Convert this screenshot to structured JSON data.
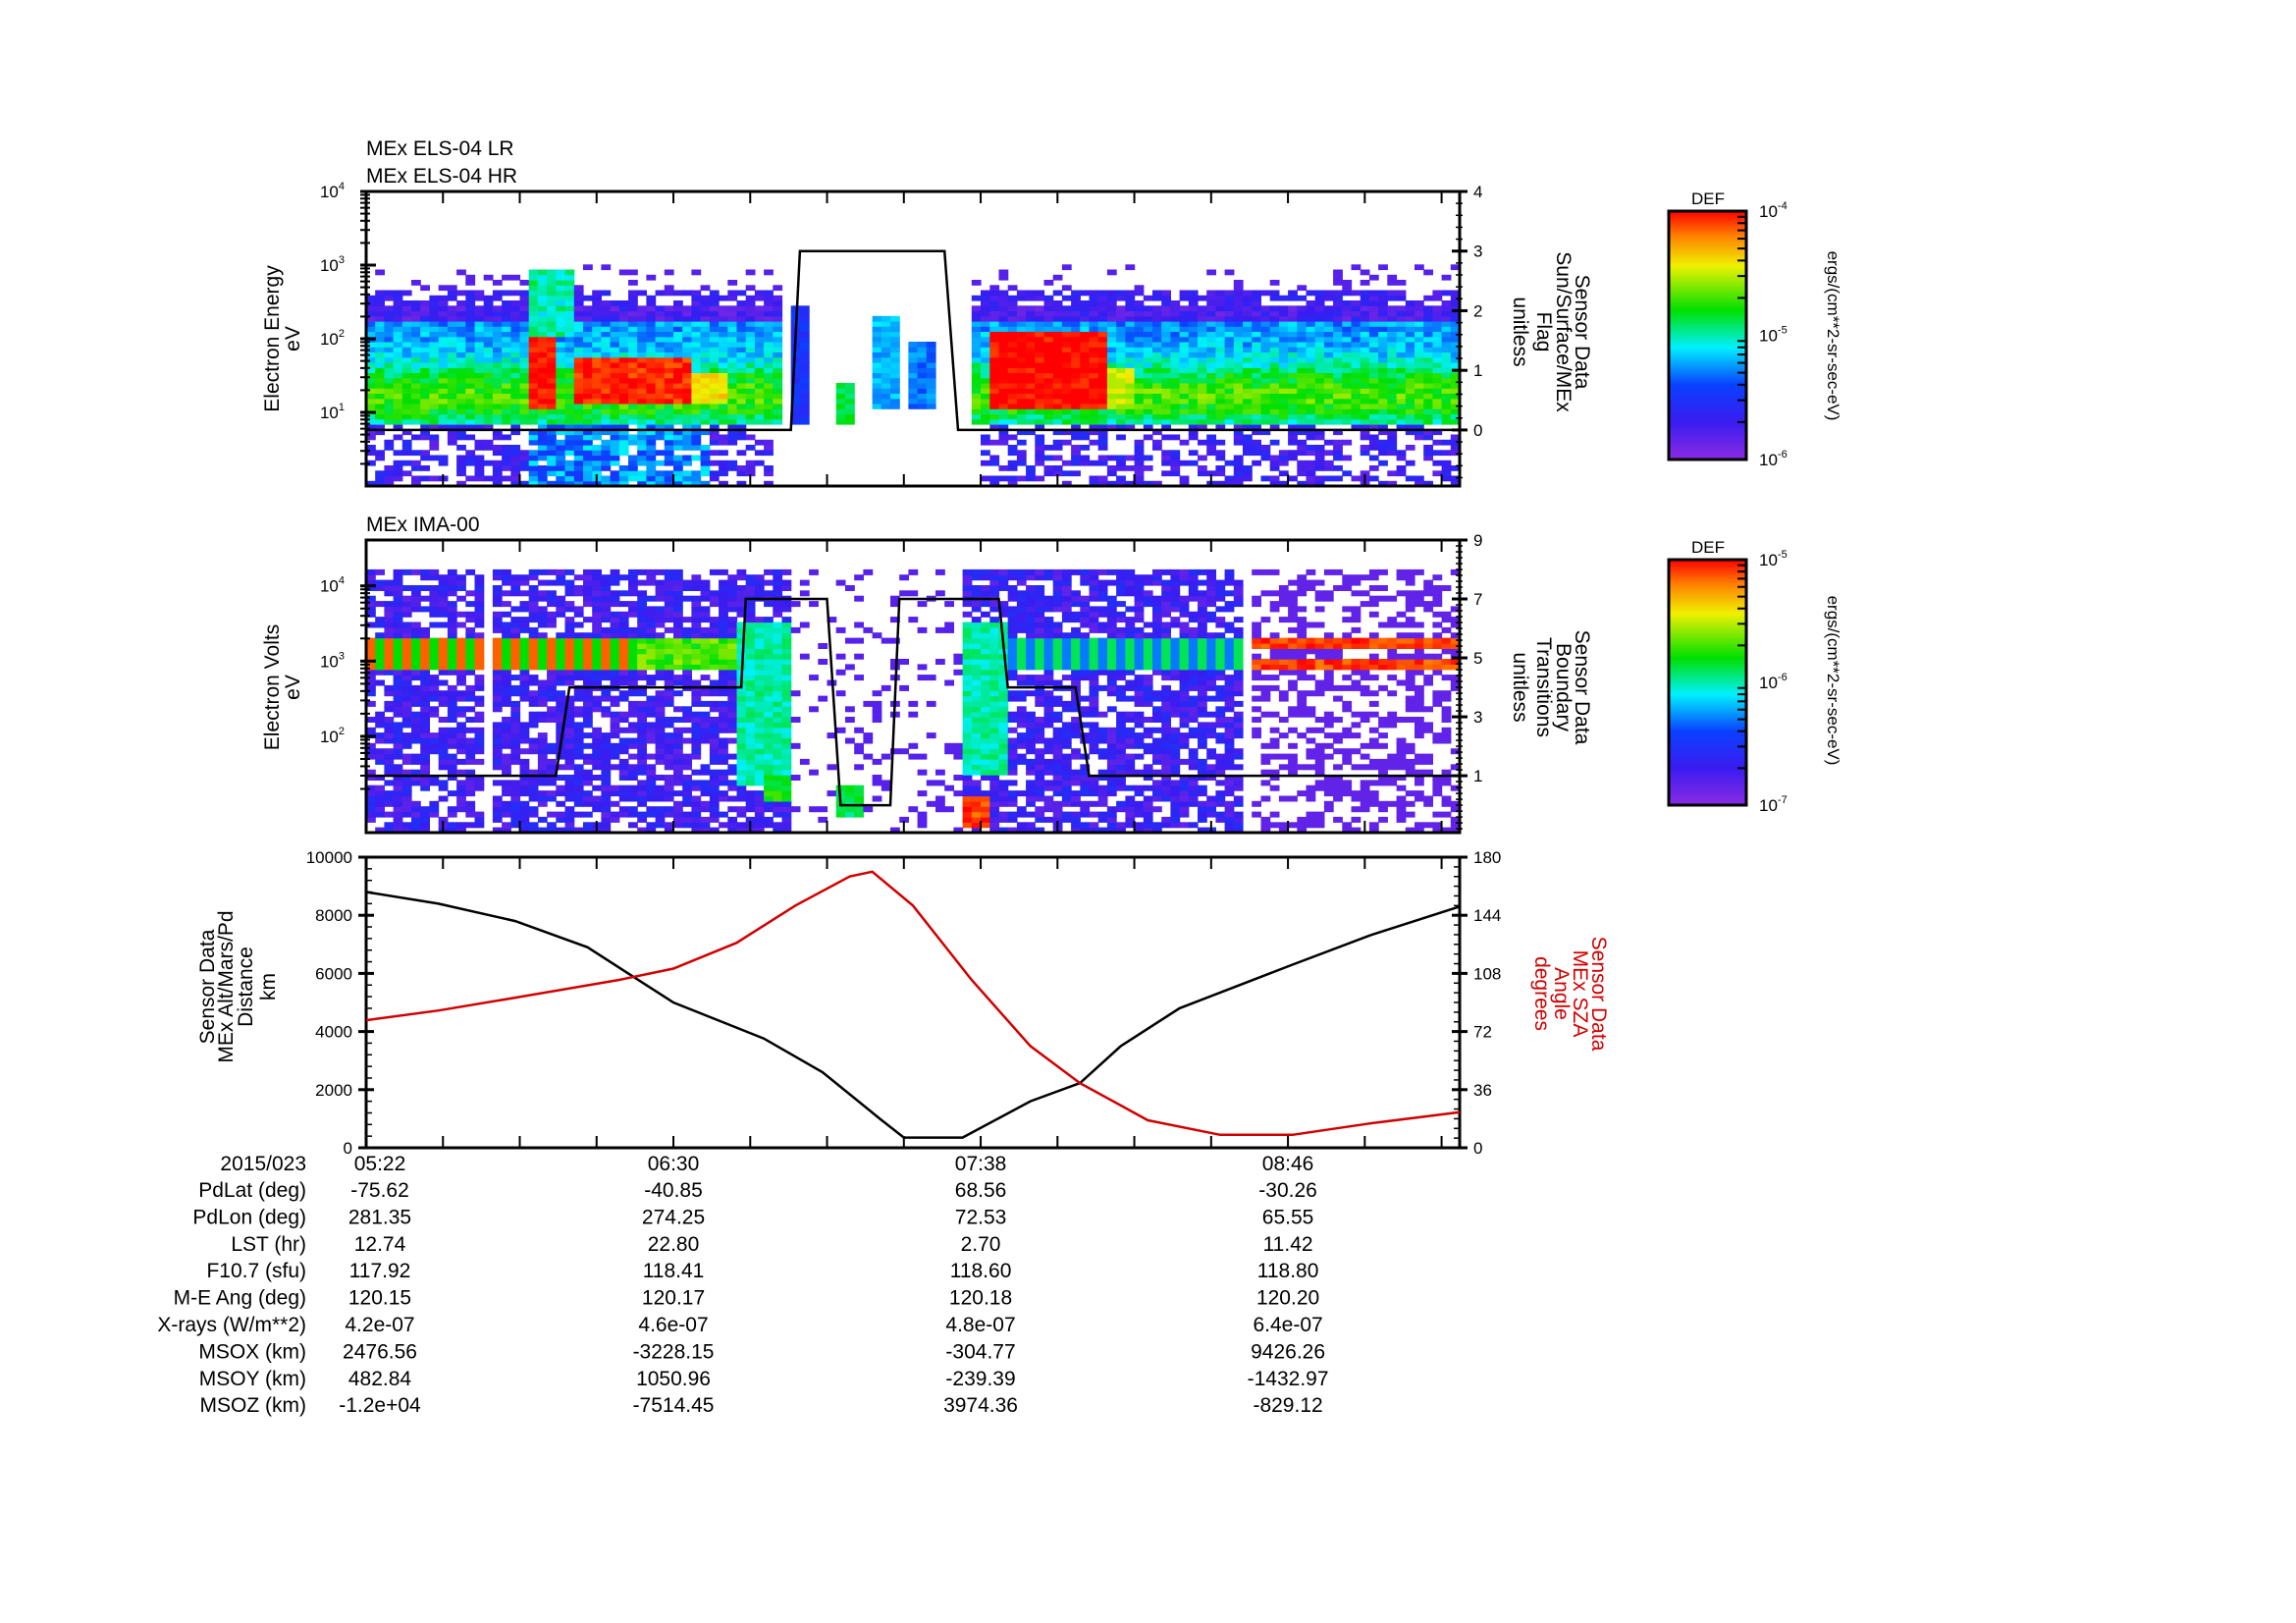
{
  "time_axis": {
    "start": "05:22",
    "span_minutes": 242,
    "major_labels": [
      "05:22",
      "06:30",
      "07:38",
      "08:46"
    ],
    "major_minutes": [
      0,
      68,
      136,
      204
    ],
    "minor_step_minutes": 17
  },
  "chart_data": [
    {
      "type": "heatmap",
      "title_lines": [
        "MEx ELS-04 LR",
        "MEx ELS-04 HR"
      ],
      "ylabel": [
        "Electron Energy",
        "eV"
      ],
      "yscale": "log",
      "ylim_log10": [
        0,
        4
      ],
      "ytick_exponents": [
        1,
        2,
        3,
        4
      ],
      "y2label": [
        "Sensor Data",
        "Sun/Surface/MEx",
        "Flag",
        "unitless"
      ],
      "y2lim": [
        -0.94,
        4
      ],
      "y2ticks": [
        "0",
        "1",
        "2",
        "3",
        "4"
      ],
      "y2_series": {
        "name": "Sun/Surface/MEx Flag",
        "t": [
          0,
          94,
          96,
          128,
          131,
          242
        ],
        "v": [
          0,
          0,
          3,
          3,
          0,
          0
        ]
      },
      "colorbar": {
        "title": "DEF",
        "log10_range": [
          -6,
          -4
        ],
        "tick_exponents": [
          "-6",
          "-5",
          "-4"
        ],
        "units": "ergs/(cm**2-sr-sec-eV)"
      },
      "features": [
        {
          "t": [
            36,
            42
          ],
          "eV": [
            11,
            100
          ],
          "log10_def": -4.0
        },
        {
          "t": [
            46,
            72
          ],
          "eV": [
            12,
            56
          ],
          "log10_def": -4.05
        },
        {
          "t": [
            72,
            80
          ],
          "eV": [
            12,
            32
          ],
          "log10_def": -4.4
        },
        {
          "t": [
            137,
            163
          ],
          "eV": [
            10,
            112
          ],
          "log10_def": -4.0
        },
        {
          "t": [
            163,
            170
          ],
          "eV": [
            10,
            40
          ],
          "log10_def": -4.5
        },
        {
          "t": [
            104,
            108
          ],
          "eV": [
            6.5,
            25
          ],
          "log10_def": -4.9
        },
        {
          "t": [
            112,
            118
          ],
          "eV": [
            10,
            200
          ],
          "log10_def": -5.2
        },
        {
          "t": [
            120,
            126
          ],
          "eV": [
            10,
            80
          ],
          "log10_def": -5.3
        },
        {
          "t": [
            94,
            98
          ],
          "eV": [
            6.6,
            250
          ],
          "log10_def": -5.5
        }
      ]
    },
    {
      "type": "heatmap",
      "title_lines": [
        "MEx IMA-00"
      ],
      "ylabel": [
        "Electron Volts",
        "eV"
      ],
      "yscale": "log",
      "ylim_log10": [
        0.72,
        4.61
      ],
      "ytick_exponents": [
        2,
        3,
        4
      ],
      "y2label": [
        "Sensor Data",
        "Boundary",
        "Transitions",
        "unitless"
      ],
      "y2lim": [
        -0.93,
        9
      ],
      "y2ticks": [
        "1",
        "3",
        "5",
        "7",
        "9"
      ],
      "y2_series": {
        "name": "Boundary Transitions",
        "t": [
          0,
          42,
          45,
          83,
          84,
          102,
          105,
          116,
          118,
          140,
          142,
          157,
          160,
          242
        ],
        "v": [
          1,
          1,
          4,
          4,
          7,
          7,
          0,
          0,
          7,
          7,
          4,
          4,
          1,
          1
        ]
      },
      "colorbar": {
        "title": "DEF",
        "log10_range": [
          -7,
          -5
        ],
        "tick_exponents": [
          "-7",
          "-6",
          "-5"
        ],
        "units": "ergs/(cm**2-sr-sec-eV)"
      },
      "features": [
        {
          "t": [
            82,
            94
          ],
          "eV": [
            20,
            3000
          ],
          "log10_def": -6.0
        },
        {
          "t": [
            88,
            93
          ],
          "eV": [
            12,
            30
          ],
          "log10_def": -5.8
        },
        {
          "t": [
            104,
            109
          ],
          "eV": [
            8,
            20
          ],
          "log10_def": -5.9
        },
        {
          "t": [
            131,
            138
          ],
          "eV": [
            6,
            15
          ],
          "log10_def": -5.1
        },
        {
          "t": [
            131,
            142
          ],
          "eV": [
            30,
            3000
          ],
          "log10_def": -6.0
        }
      ]
    },
    {
      "type": "line",
      "ylabel": [
        "Sensor Data",
        "MEx Alt/Mars/Pd",
        "Distance",
        "km"
      ],
      "ylim": [
        0,
        10000
      ],
      "yticks": [
        "0",
        "2000",
        "4000",
        "6000",
        "8000",
        "10000"
      ],
      "y2label": [
        "Sensor Data",
        "MEx SZA",
        "Angle",
        "degrees"
      ],
      "y2lim": [
        0,
        180
      ],
      "y2ticks": [
        "0",
        "36",
        "72",
        "108",
        "144",
        "180"
      ],
      "series": [
        {
          "name": "MEx Alt/Mars/Pd Distance (km)",
          "axis": "left",
          "color": "#000000",
          "t": [
            0,
            16,
            33,
            49,
            68,
            88,
            101,
            114,
            119,
            132,
            147,
            158,
            167,
            180,
            205,
            222,
            242
          ],
          "v": [
            8800,
            8400,
            7800,
            6900,
            5000,
            3760,
            2600,
            960,
            350,
            350,
            1600,
            2230,
            3500,
            4800,
            6300,
            7300,
            8300
          ]
        },
        {
          "name": "MEx SZA Angle (degrees)",
          "axis": "right",
          "color": "#d00000",
          "t": [
            0,
            16,
            33,
            56,
            68,
            82,
            95,
            107,
            112,
            121,
            134,
            147,
            158,
            173,
            189,
            205,
            222,
            242
          ],
          "v": [
            79,
            85,
            93,
            104,
            111,
            127,
            150,
            168,
            171,
            150,
            104,
            63,
            40,
            17,
            8,
            8,
            15,
            22
          ]
        }
      ]
    }
  ],
  "ephemeris": {
    "date": "2015/023",
    "rows": [
      {
        "label": "PdLat (deg)",
        "values": [
          "-75.62",
          "-40.85",
          "68.56",
          "-30.26"
        ]
      },
      {
        "label": "PdLon (deg)",
        "values": [
          "281.35",
          "274.25",
          "72.53",
          "65.55"
        ]
      },
      {
        "label": "LST (hr)",
        "values": [
          "12.74",
          "22.80",
          "2.70",
          "11.42"
        ]
      },
      {
        "label": "F10.7 (sfu)",
        "values": [
          "117.92",
          "118.41",
          "118.60",
          "118.80"
        ]
      },
      {
        "label": "M-E Ang (deg)",
        "values": [
          "120.15",
          "120.17",
          "120.18",
          "120.20"
        ]
      },
      {
        "label": "X-rays (W/m**2)",
        "values": [
          "4.2e-07",
          "4.6e-07",
          "4.8e-07",
          "6.4e-07"
        ]
      },
      {
        "label": "MSOX (km)",
        "values": [
          "2476.56",
          "-3228.15",
          "-304.77",
          "9426.26"
        ]
      },
      {
        "label": "MSOY (km)",
        "values": [
          "482.84",
          "1050.96",
          "-239.39",
          "-1432.97"
        ]
      },
      {
        "label": "MSOZ (km)",
        "values": [
          "-1.2e+04",
          "-7514.45",
          "3974.36",
          "-829.12"
        ]
      }
    ]
  }
}
